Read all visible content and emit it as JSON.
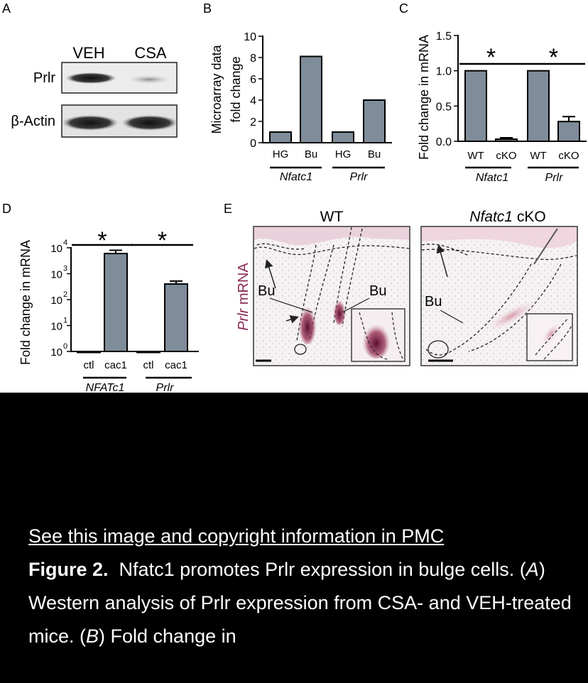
{
  "panels": {
    "A": {
      "letter": "A",
      "lanes": [
        "VEH",
        "CSA"
      ],
      "rows": [
        "Prlr",
        "β-Actin"
      ]
    },
    "E": {
      "letter": "E",
      "ylabel_italic": "Prlr",
      "ylabel_rest": " mRNA",
      "left_title": "WT",
      "right_title_italic": "Nfatc1",
      "right_title_rest": " cKO",
      "bu_label": "Bu"
    }
  },
  "chart_data": [
    {
      "panel": "B",
      "type": "bar",
      "ylabel": [
        "Microarray data",
        "fold change"
      ],
      "categories": [
        "HG",
        "Bu",
        "HG",
        "Bu"
      ],
      "groups": [
        {
          "name": "Nfatc1",
          "italic": true
        },
        {
          "name": "Prlr",
          "italic": true
        }
      ],
      "values": [
        1,
        8.1,
        1,
        4
      ],
      "ylim": [
        0,
        10
      ],
      "yticks": [
        "0",
        "2",
        "4",
        "6",
        "8",
        "10"
      ],
      "color": "#7f8c99"
    },
    {
      "panel": "C",
      "type": "bar",
      "ylabel": "Fold change in mRNA",
      "categories": [
        "WT",
        "cKO",
        "WT",
        "cKO"
      ],
      "groups": [
        {
          "name": "Nfatc1",
          "italic": true
        },
        {
          "name": "Prlr",
          "italic": true
        }
      ],
      "values": [
        1.0,
        0.03,
        1.0,
        0.28
      ],
      "errors": [
        0,
        0.02,
        0,
        0.07
      ],
      "ylim": [
        0,
        1.5
      ],
      "yticks": [
        "0.0",
        "0.5",
        "1.0",
        "1.5"
      ],
      "significance": [
        "*",
        "*"
      ],
      "color": "#7f8c99"
    },
    {
      "panel": "D",
      "type": "bar",
      "ylabel": "Fold change in mRNA",
      "yscale": "log",
      "categories": [
        "ctl",
        "cac1",
        "ctl",
        "cac1"
      ],
      "groups": [
        {
          "name": "NFATc1",
          "italic": true
        },
        {
          "name": "Prlr",
          "italic": true
        }
      ],
      "values": [
        1,
        6000,
        1,
        400
      ],
      "errors_upper": [
        0,
        8000,
        0,
        520
      ],
      "ylim": [
        1,
        10000
      ],
      "yticks": [
        "10",
        "10",
        "10",
        "10",
        "10"
      ],
      "ytick_exponents": [
        "0",
        "1",
        "2",
        "3",
        "4"
      ],
      "significance": [
        "*",
        "*"
      ],
      "color": "#7f8c99"
    }
  ],
  "caption": {
    "link": "See this image and copyright information in PMC",
    "figure_label": "Figure 2.",
    "text_1": "Nfatc1 promotes Prlr expression in bulge cells. (",
    "A": "A",
    "text_2": ") Western analysis of Prlr expression from CSA- and VEH-treated mice. (",
    "B": "B",
    "text_3": ") Fold change in"
  }
}
